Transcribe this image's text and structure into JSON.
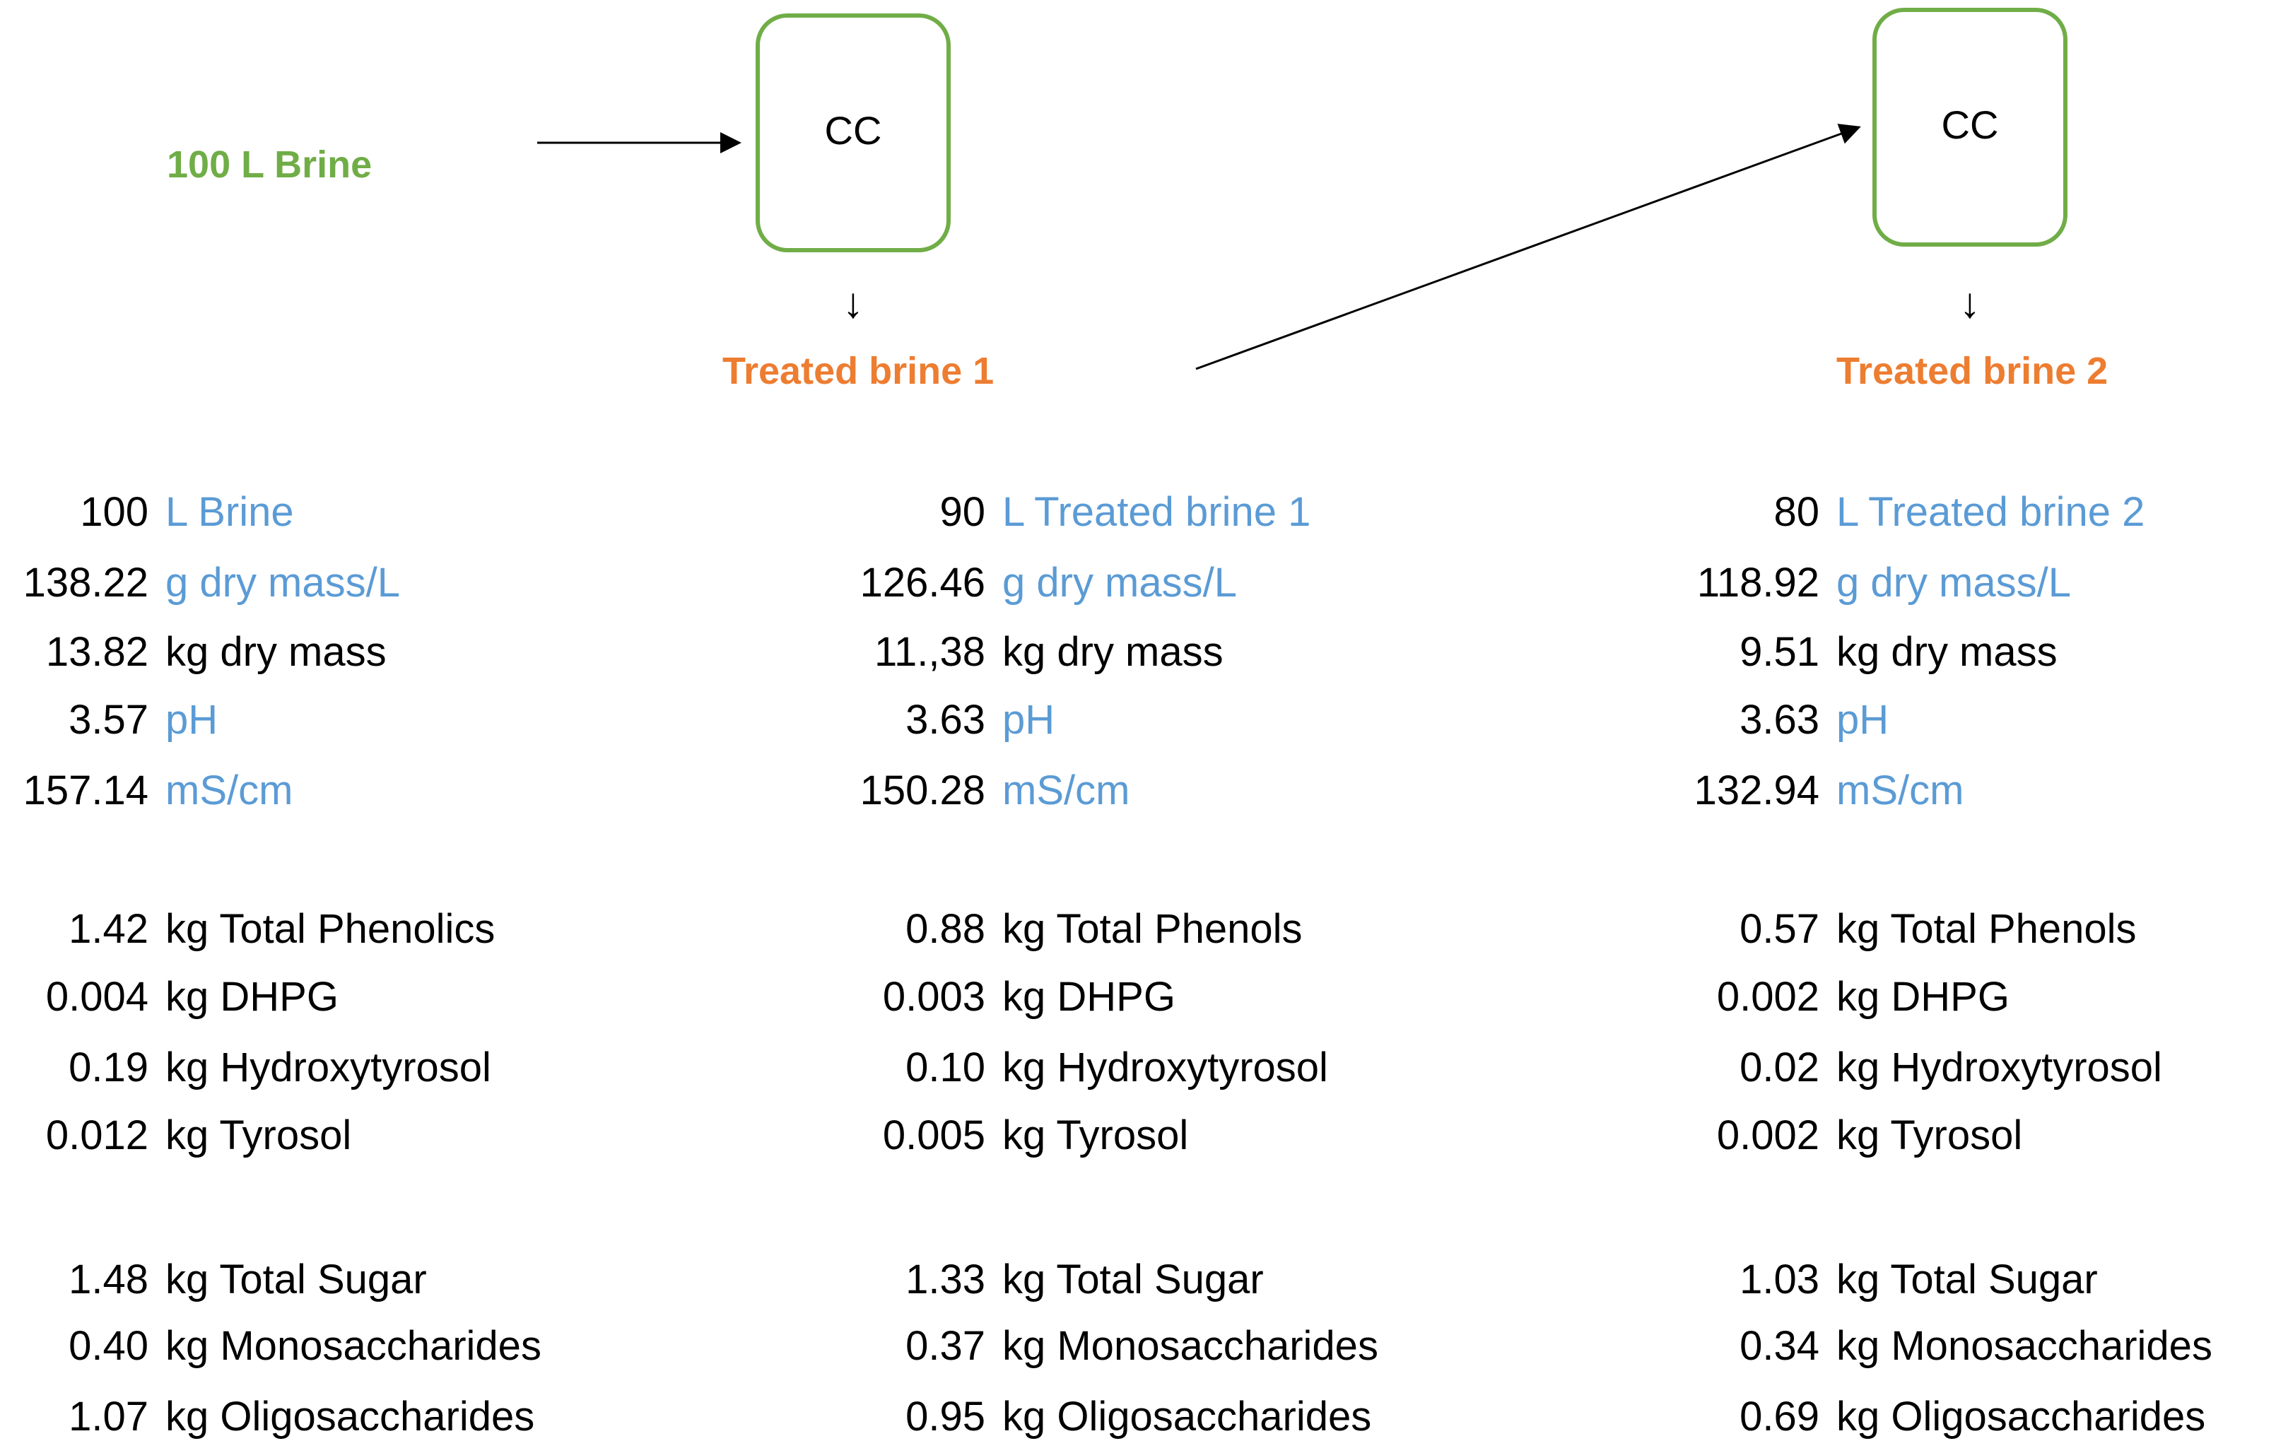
{
  "diagram": {
    "input_label": "100 L Brine",
    "box1_label": "CC",
    "box2_label": "CC",
    "down_arrow_glyph": "↓",
    "output1_label": "Treated brine 1",
    "output2_label": "Treated brine 2",
    "colors": {
      "green": "#70ad47",
      "orange": "#ed7d31",
      "blue": "#5b9bd5"
    }
  },
  "columns": [
    {
      "rows": [
        {
          "value": "100",
          "unit": "L Brine",
          "unit_color": "blue"
        },
        {
          "value": "138.22",
          "unit": "g dry mass/L",
          "unit_color": "blue"
        },
        {
          "value": "13.82",
          "unit": "kg dry mass",
          "unit_color": "black"
        },
        {
          "value": "3.57",
          "unit": "pH",
          "unit_color": "blue"
        },
        {
          "value": "157.14",
          "unit": "mS/cm",
          "unit_color": "blue"
        },
        {
          "value": "1.42",
          "unit": "kg Total Phenolics",
          "unit_color": "black"
        },
        {
          "value": "0.004",
          "unit": "kg DHPG",
          "unit_color": "black"
        },
        {
          "value": "0.19",
          "unit": "kg Hydroxytyrosol",
          "unit_color": "black"
        },
        {
          "value": "0.012",
          "unit": "kg Tyrosol",
          "unit_color": "black"
        },
        {
          "value": "1.48",
          "unit": "kg Total Sugar",
          "unit_color": "black"
        },
        {
          "value": "0.40",
          "unit": "kg Monosaccharides",
          "unit_color": "black"
        },
        {
          "value": "1.07",
          "unit": "kg Oligosaccharides",
          "unit_color": "black"
        }
      ]
    },
    {
      "rows": [
        {
          "value": "90",
          "unit": "L Treated brine 1",
          "unit_color": "blue"
        },
        {
          "value": "126.46",
          "unit": "g dry mass/L",
          "unit_color": "blue"
        },
        {
          "value": "11.,38",
          "unit": "kg dry mass",
          "unit_color": "black"
        },
        {
          "value": "3.63",
          "unit": "pH",
          "unit_color": "blue"
        },
        {
          "value": "150.28",
          "unit": "mS/cm",
          "unit_color": "blue"
        },
        {
          "value": "0.88",
          "unit": "kg Total Phenols",
          "unit_color": "black"
        },
        {
          "value": "0.003",
          "unit": "kg DHPG",
          "unit_color": "black"
        },
        {
          "value": "0.10",
          "unit": "kg Hydroxytyrosol",
          "unit_color": "black"
        },
        {
          "value": "0.005",
          "unit": "kg Tyrosol",
          "unit_color": "black"
        },
        {
          "value": "1.33",
          "unit": "kg Total Sugar",
          "unit_color": "black"
        },
        {
          "value": "0.37",
          "unit": "kg Monosaccharides",
          "unit_color": "black"
        },
        {
          "value": "0.95",
          "unit": "kg Oligosaccharides",
          "unit_color": "black"
        }
      ]
    },
    {
      "rows": [
        {
          "value": "80",
          "unit": "L Treated brine 2",
          "unit_color": "blue"
        },
        {
          "value": "118.92",
          "unit": "g dry mass/L",
          "unit_color": "blue"
        },
        {
          "value": "9.51",
          "unit": "kg dry mass",
          "unit_color": "black"
        },
        {
          "value": "3.63",
          "unit": "pH",
          "unit_color": "blue"
        },
        {
          "value": "132.94",
          "unit": "mS/cm",
          "unit_color": "blue"
        },
        {
          "value": "0.57",
          "unit": "kg Total Phenols",
          "unit_color": "black"
        },
        {
          "value": "0.002",
          "unit": "kg DHPG",
          "unit_color": "black"
        },
        {
          "value": "0.02",
          "unit": "kg Hydroxytyrosol",
          "unit_color": "black"
        },
        {
          "value": "0.002",
          "unit": "kg Tyrosol",
          "unit_color": "black"
        },
        {
          "value": "1.03",
          "unit": "kg Total Sugar",
          "unit_color": "black"
        },
        {
          "value": "0.34",
          "unit": "kg Monosaccharides",
          "unit_color": "black"
        },
        {
          "value": "0.69",
          "unit": "kg Oligosaccharides",
          "unit_color": "black"
        }
      ]
    }
  ]
}
